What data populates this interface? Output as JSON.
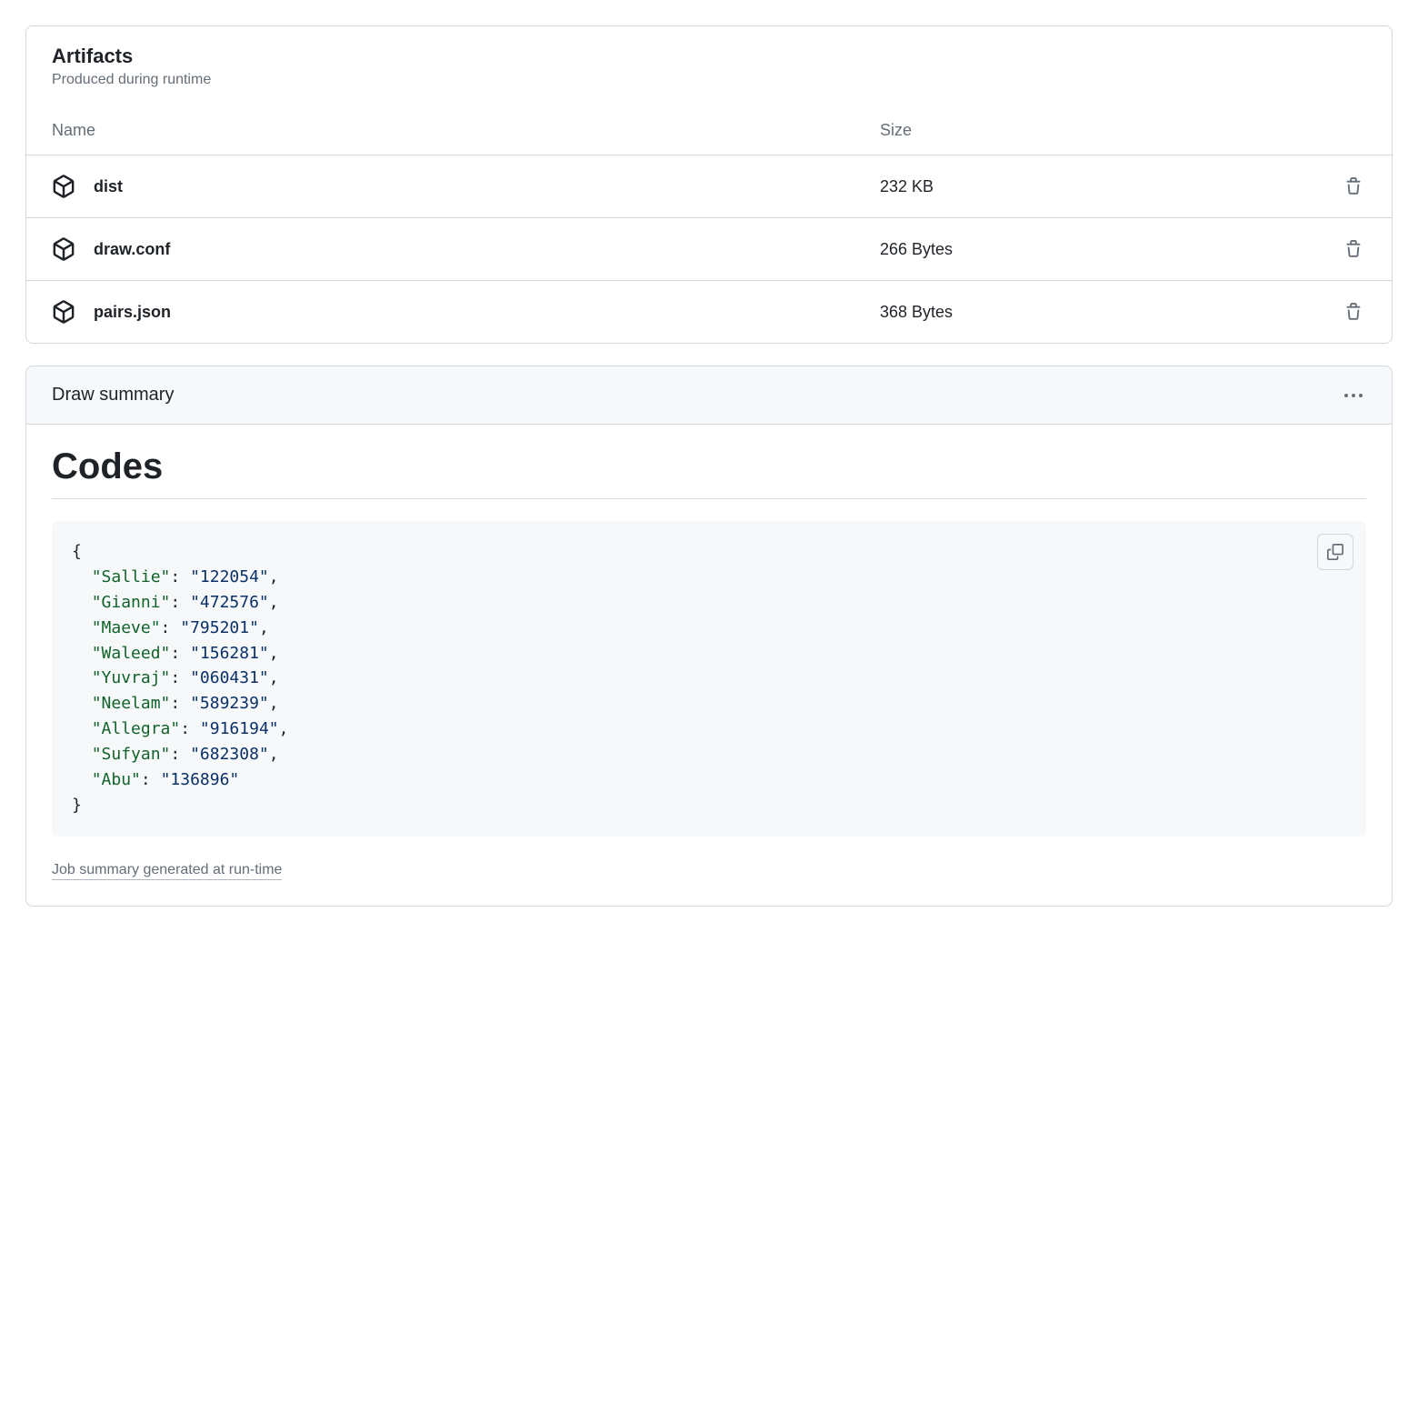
{
  "artifacts": {
    "title": "Artifacts",
    "subtitle": "Produced during runtime",
    "columns": {
      "name": "Name",
      "size": "Size"
    },
    "rows": [
      {
        "name": "dist",
        "size": "232 KB"
      },
      {
        "name": "draw.conf",
        "size": "266 Bytes"
      },
      {
        "name": "pairs.json",
        "size": "368 Bytes"
      }
    ]
  },
  "summary": {
    "header": "Draw summary",
    "heading": "Codes",
    "codes": {
      "Sallie": "122054",
      "Gianni": "472576",
      "Maeve": "795201",
      "Waleed": "156281",
      "Yuvraj": "060431",
      "Neelam": "589239",
      "Allegra": "916194",
      "Sufyan": "682308",
      "Abu": "136896"
    },
    "footer": "Job summary generated at run-time"
  },
  "colors": {
    "border": "#d0d7de",
    "muted_fg": "#656d76",
    "fg": "#1f2328",
    "subtle_bg": "#f6f8fa",
    "json_key": "#116329",
    "json_str": "#0a3069"
  }
}
